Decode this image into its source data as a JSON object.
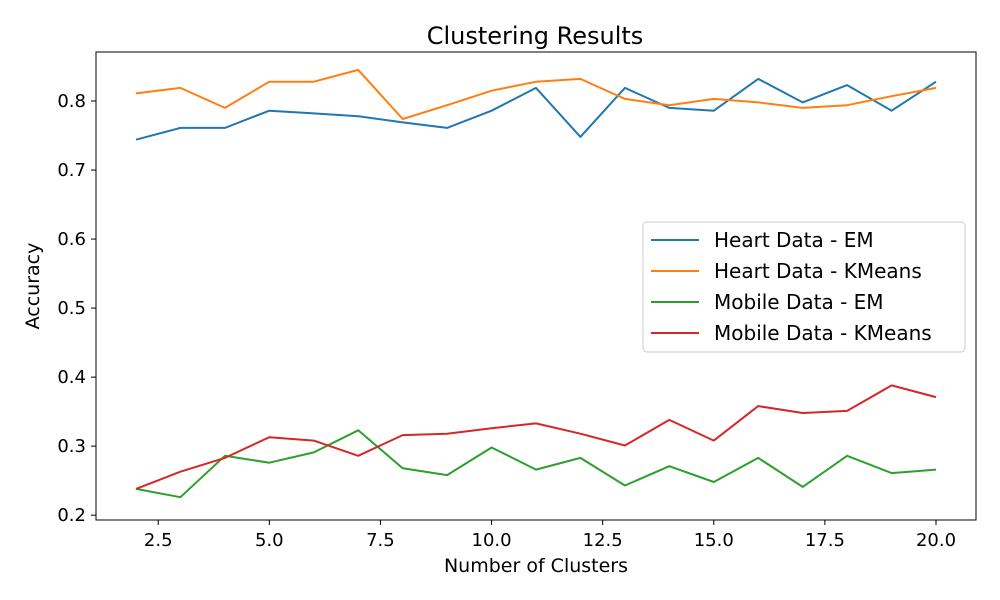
{
  "chart_data": {
    "type": "line",
    "title": "Clustering Results",
    "xlabel": "Number of Clusters",
    "ylabel": "Accuracy",
    "xlim": [
      1.1,
      20.9
    ],
    "ylim": [
      0.193,
      0.871
    ],
    "xticks": [
      2.5,
      5.0,
      7.5,
      10.0,
      12.5,
      15.0,
      17.5,
      20.0
    ],
    "xtick_labels": [
      "2.5",
      "5.0",
      "7.5",
      "10.0",
      "12.5",
      "15.0",
      "17.5",
      "20.0"
    ],
    "yticks": [
      0.2,
      0.3,
      0.4,
      0.5,
      0.6,
      0.7,
      0.8
    ],
    "ytick_labels": [
      "0.2",
      "0.3",
      "0.4",
      "0.5",
      "0.6",
      "0.7",
      "0.8"
    ],
    "grid": false,
    "legend_position": "center-right",
    "x": [
      2,
      3,
      4,
      5,
      6,
      7,
      8,
      9,
      10,
      11,
      12,
      13,
      14,
      15,
      16,
      17,
      18,
      19,
      20
    ],
    "series": [
      {
        "name": "Heart Data - EM",
        "color": "#1f77b4",
        "values": [
          0.744,
          0.761,
          0.761,
          0.786,
          0.782,
          0.778,
          0.769,
          0.761,
          0.786,
          0.819,
          0.748,
          0.819,
          0.79,
          0.786,
          0.832,
          0.798,
          0.823,
          0.786,
          0.828
        ]
      },
      {
        "name": "Heart Data - KMeans",
        "color": "#ff7f0e",
        "values": [
          0.811,
          0.819,
          0.79,
          0.828,
          0.828,
          0.845,
          0.774,
          0.794,
          0.815,
          0.828,
          0.832,
          0.803,
          0.794,
          0.803,
          0.798,
          0.79,
          0.794,
          0.807,
          0.819
        ]
      },
      {
        "name": "Mobile Data - EM",
        "color": "#2ca02c",
        "values": [
          0.238,
          0.226,
          0.286,
          0.276,
          0.291,
          0.323,
          0.268,
          0.258,
          0.298,
          0.266,
          0.283,
          0.243,
          0.271,
          0.248,
          0.283,
          0.241,
          0.286,
          0.261,
          0.266
        ]
      },
      {
        "name": "Mobile Data - KMeans",
        "color": "#d62728",
        "values": [
          0.238,
          0.263,
          0.283,
          0.313,
          0.308,
          0.286,
          0.316,
          0.318,
          0.326,
          0.333,
          0.318,
          0.301,
          0.338,
          0.308,
          0.358,
          0.348,
          0.351,
          0.388,
          0.371
        ]
      }
    ]
  }
}
